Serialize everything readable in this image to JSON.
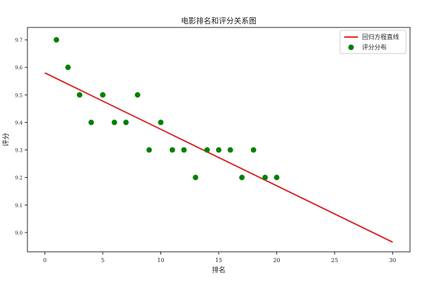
{
  "chart_data": {
    "type": "scatter",
    "title": "电影排名和评分关系图",
    "xlabel": "排名",
    "ylabel": "评分",
    "xlim": [
      -1.5,
      31.5
    ],
    "ylim": [
      8.93,
      9.745
    ],
    "xticks": [
      0,
      5,
      10,
      15,
      20,
      25,
      30
    ],
    "yticks": [
      9.0,
      9.1,
      9.2,
      9.3,
      9.4,
      9.5,
      9.6,
      9.7
    ],
    "legend": {
      "placement": "top-right",
      "entries": [
        "回归方程直线",
        "评分分布"
      ]
    },
    "grid": false,
    "series": [
      {
        "name": "回归方程直线",
        "kind": "line",
        "color": "#d62728",
        "x": [
          0,
          30
        ],
        "y": [
          9.58,
          8.965
        ]
      },
      {
        "name": "评分分布",
        "kind": "scatter",
        "color": "#008000",
        "x": [
          1,
          2,
          3,
          4,
          5,
          6,
          7,
          8,
          9,
          10,
          11,
          12,
          13,
          14,
          15,
          16,
          17,
          18,
          19,
          20
        ],
        "y": [
          9.7,
          9.6,
          9.5,
          9.4,
          9.5,
          9.4,
          9.4,
          9.5,
          9.3,
          9.4,
          9.3,
          9.3,
          9.2,
          9.3,
          9.3,
          9.3,
          9.2,
          9.3,
          9.2,
          9.2
        ]
      }
    ]
  }
}
